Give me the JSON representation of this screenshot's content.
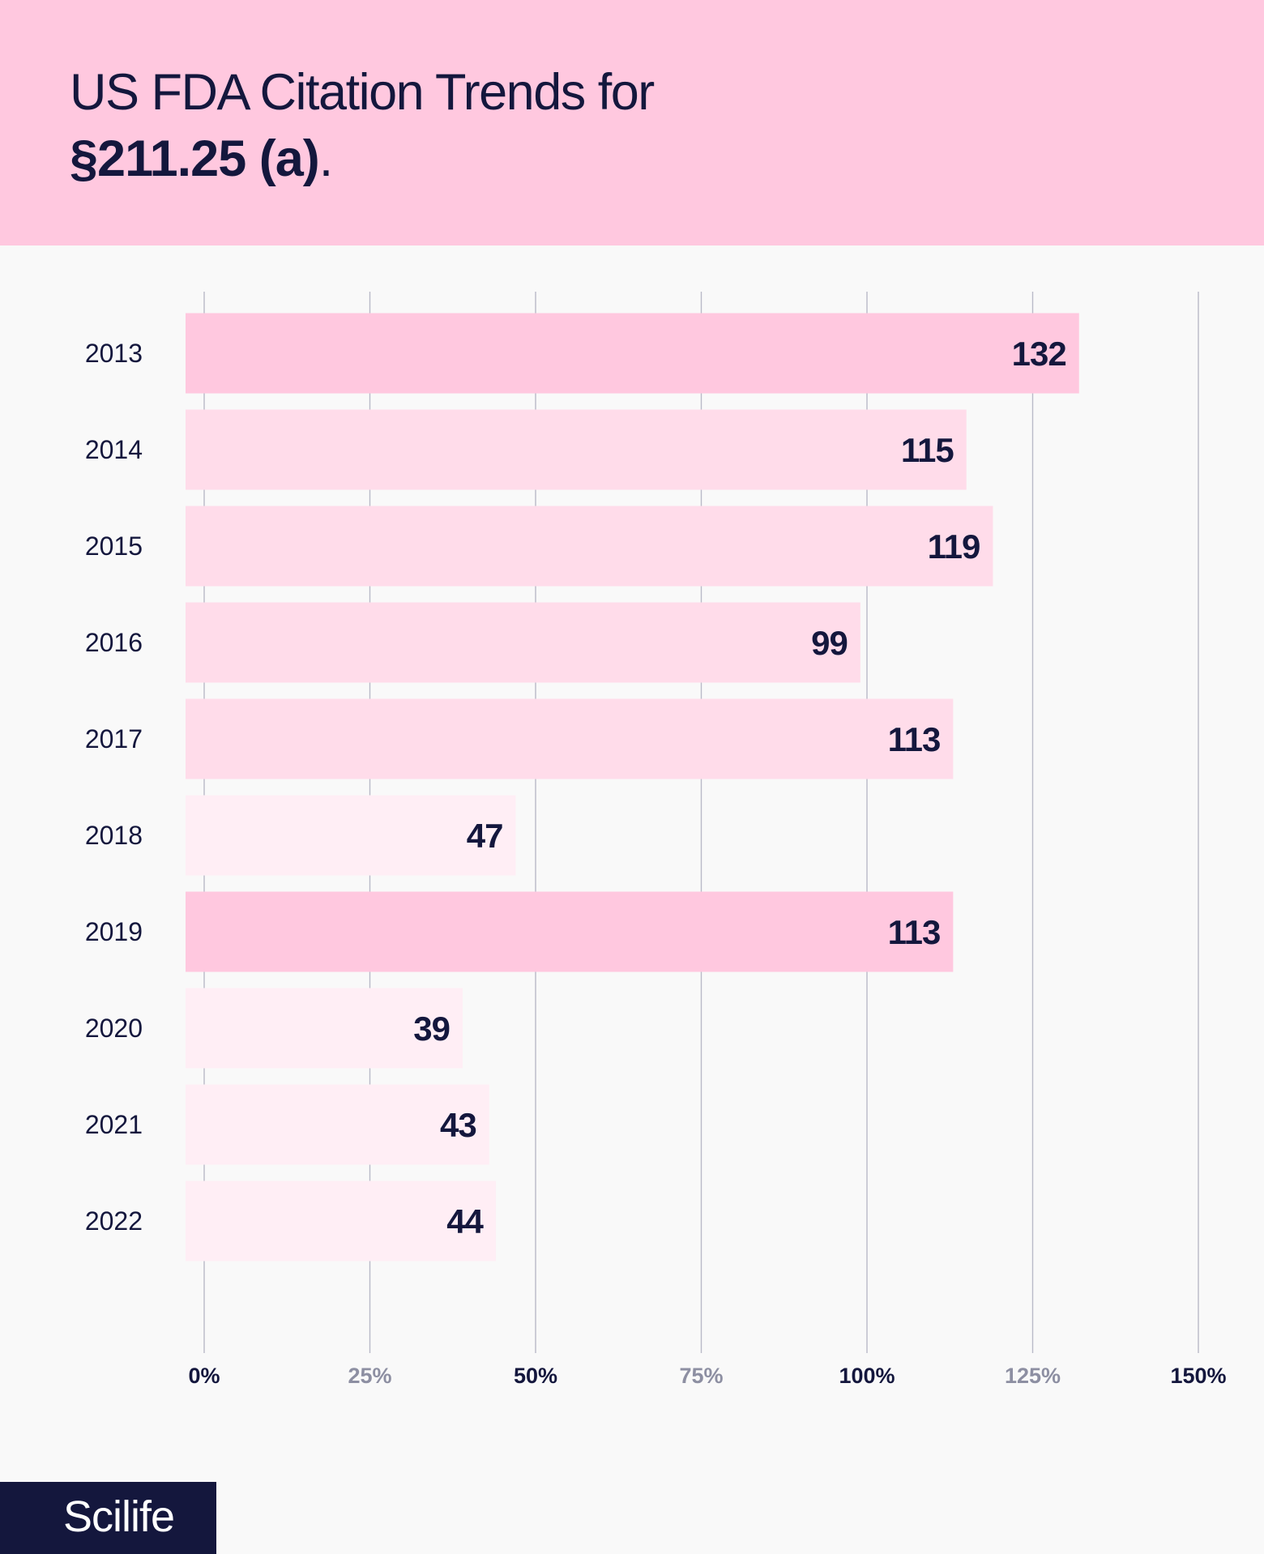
{
  "header": {
    "title_line1": "US FDA Citation Trends for",
    "title_line2": "§211.25 (a)",
    "title_line2_suffix": "."
  },
  "colors": {
    "header_bg": "#ffc8df",
    "bar_dark": "#ffc8df",
    "bar_mid": "#ffdcea",
    "bar_light": "#ffeef5",
    "text": "#14173d",
    "tick_muted": "#8d8fa2",
    "grid_line": "#b9bac8"
  },
  "chart_data": {
    "type": "bar",
    "orientation": "horizontal",
    "categories": [
      "2013",
      "2014",
      "2015",
      "2016",
      "2017",
      "2018",
      "2019",
      "2020",
      "2021",
      "2022"
    ],
    "values": [
      132,
      115,
      119,
      99,
      113,
      47,
      113,
      39,
      43,
      44
    ],
    "data_labels": [
      "132",
      "115",
      "119",
      "99",
      "113",
      "47",
      "113",
      "39",
      "43",
      "44"
    ],
    "bar_shades": [
      "dark",
      "mid",
      "mid",
      "mid",
      "mid",
      "light",
      "dark",
      "light",
      "light",
      "light"
    ],
    "x_ticks": [
      0,
      25,
      50,
      75,
      100,
      125,
      150
    ],
    "x_tick_labels": [
      "0%",
      "25%",
      "50%",
      "75%",
      "100%",
      "125%",
      "150%"
    ],
    "x_tick_muted": [
      false,
      true,
      false,
      true,
      false,
      true,
      false
    ],
    "xlim": [
      0,
      150
    ],
    "grid": true,
    "legend": "none"
  },
  "brand": {
    "logo_text": "Scilife"
  }
}
